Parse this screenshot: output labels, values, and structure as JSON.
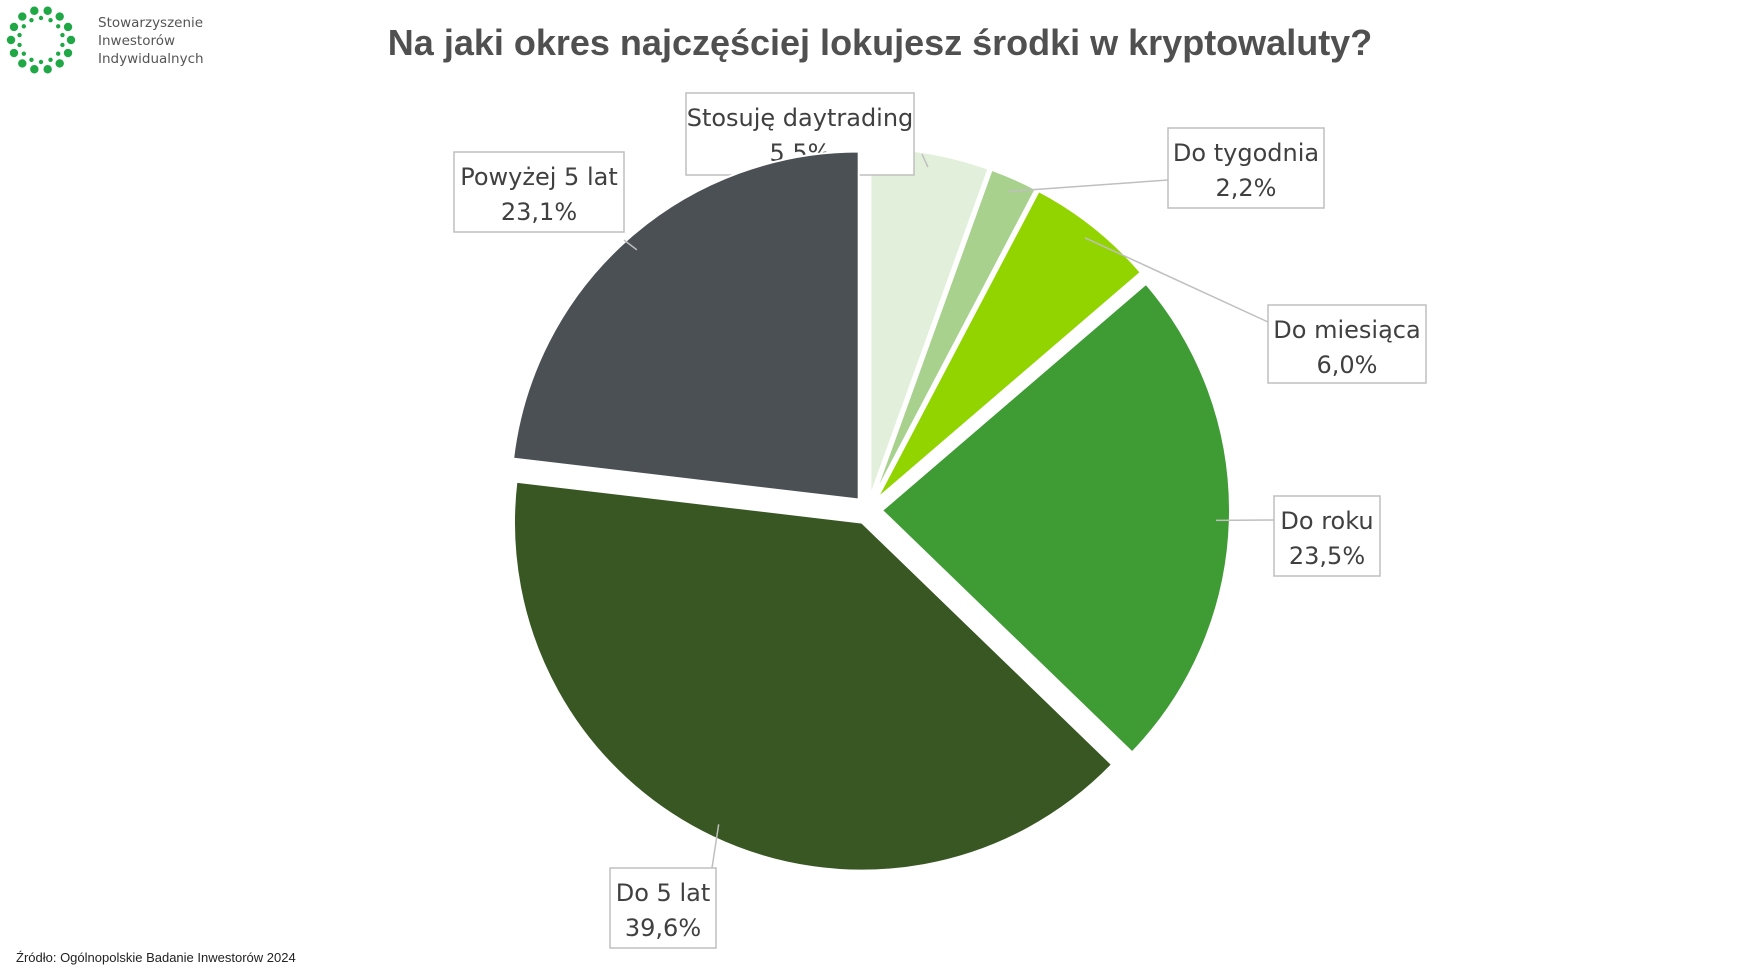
{
  "logo": {
    "line1": "Stowarzyszenie",
    "line2": "Inwestorów",
    "line3": "Indywidualnych",
    "color": "#1fa845"
  },
  "source": "Źródło: Ogólnopolskie Badanie Inwestorów 2024",
  "chart_data": {
    "type": "pie",
    "title": "Na jaki okres najczęściej lokujesz środki w kryptowaluty?",
    "slices": [
      {
        "label": "Stosuję daytrading",
        "value": 5.5,
        "value_label": "5,5%",
        "color": "#e2efda"
      },
      {
        "label": "Do tygodnia",
        "value": 2.2,
        "value_label": "2,2%",
        "color": "#a9d18e"
      },
      {
        "label": "Do miesiąca",
        "value": 6.0,
        "value_label": "6,0%",
        "color": "#92d400"
      },
      {
        "label": "Do roku",
        "value": 23.5,
        "value_label": "23,5%",
        "color": "#3f9c35"
      },
      {
        "label": "Do 5 lat",
        "value": 39.6,
        "value_label": "39,6%",
        "color": "#385723"
      },
      {
        "label": "Powyżej 5 lat",
        "value": 23.1,
        "value_label": "23,1%",
        "color": "#4b5055"
      }
    ]
  }
}
